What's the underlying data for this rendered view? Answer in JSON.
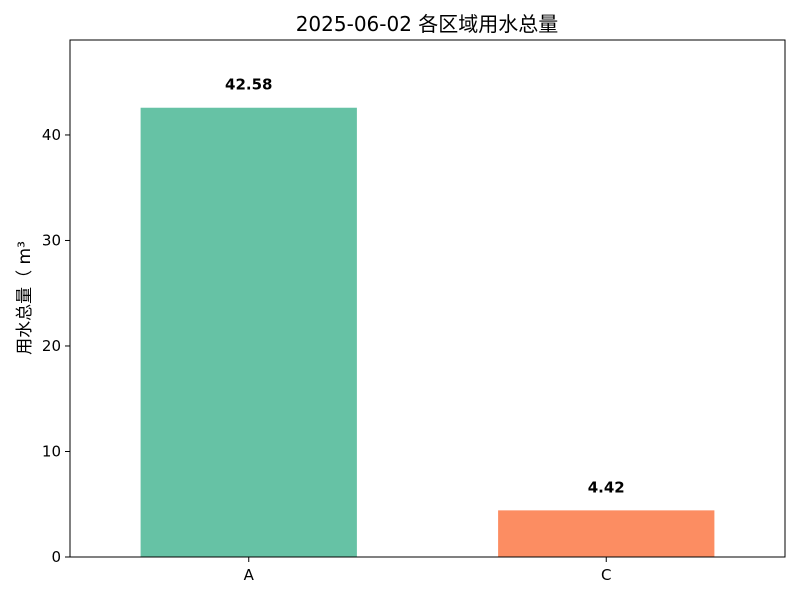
{
  "chart_data": {
    "type": "bar",
    "title": "2025-06-02 各区域用水总量",
    "xlabel": "",
    "ylabel": "用水总量（ m³",
    "categories": [
      "A",
      "C"
    ],
    "values": [
      42.58,
      4.42
    ],
    "value_labels": [
      "42.58",
      "4.42"
    ],
    "colors": [
      "#66c2a5",
      "#fc8d62"
    ],
    "ylim": [
      0,
      49
    ],
    "yticks": [
      0,
      10,
      20,
      30,
      40
    ],
    "grid": false,
    "legend": "none"
  }
}
